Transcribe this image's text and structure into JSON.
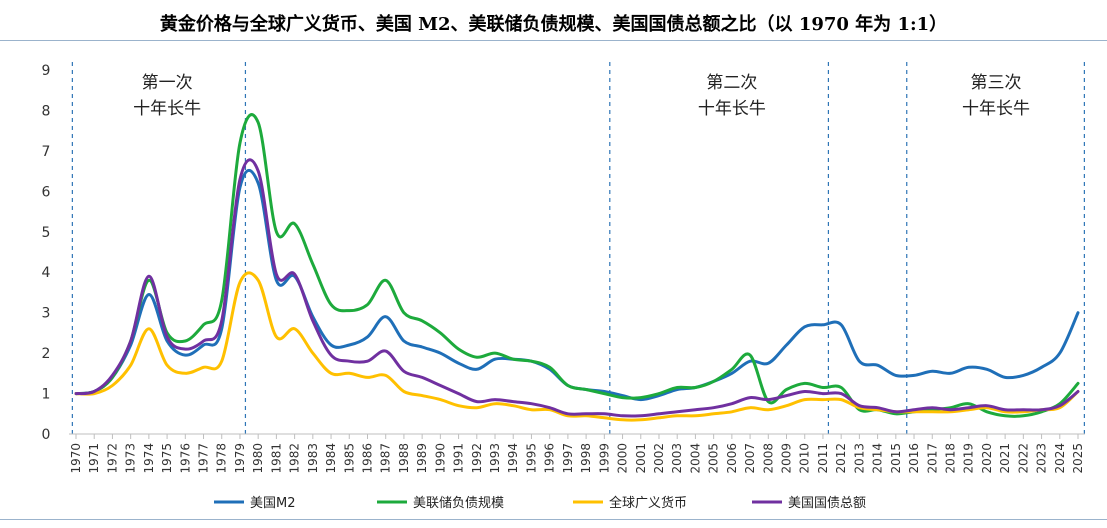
{
  "chart_data": {
    "type": "line",
    "title": "黄金价格与全球广义货币、美国 M2、美联储负债规模、美国国债总额之比（以 1970 年为 1:1）",
    "xlabel": "",
    "ylabel": "",
    "ylim": [
      0,
      9
    ],
    "yticks": [
      "0",
      "1",
      "2",
      "3",
      "4",
      "5",
      "6",
      "7",
      "8",
      "9"
    ],
    "grid": false,
    "legend_position": "bottom",
    "x": [
      1970,
      1971,
      1972,
      1973,
      1974,
      1975,
      1976,
      1977,
      1978,
      1979,
      1980,
      1981,
      1982,
      1983,
      1984,
      1985,
      1986,
      1987,
      1988,
      1989,
      1990,
      1991,
      1992,
      1993,
      1994,
      1995,
      1996,
      1997,
      1998,
      1999,
      2000,
      2001,
      2002,
      2003,
      2004,
      2005,
      2006,
      2007,
      2008,
      2009,
      2010,
      2011,
      2012,
      2013,
      2014,
      2015,
      2016,
      2017,
      2018,
      2019,
      2020,
      2021,
      2022,
      2023,
      2024,
      2025
    ],
    "series": [
      {
        "name": "美国M2",
        "color": "#1f6fb8",
        "values": [
          1.0,
          1.05,
          1.4,
          2.2,
          3.45,
          2.3,
          1.95,
          2.2,
          2.6,
          6.1,
          6.2,
          3.8,
          3.9,
          2.9,
          2.2,
          2.2,
          2.4,
          2.9,
          2.3,
          2.15,
          2.0,
          1.75,
          1.6,
          1.85,
          1.85,
          1.8,
          1.6,
          1.2,
          1.1,
          1.05,
          0.95,
          0.85,
          0.95,
          1.1,
          1.15,
          1.3,
          1.5,
          1.8,
          1.75,
          2.2,
          2.65,
          2.7,
          2.7,
          1.8,
          1.7,
          1.45,
          1.45,
          1.55,
          1.5,
          1.65,
          1.6,
          1.4,
          1.45,
          1.65,
          2.0,
          3.0
        ]
      },
      {
        "name": "美联储负债规模",
        "color": "#1daa3c",
        "values": [
          1.0,
          1.05,
          1.4,
          2.3,
          3.8,
          2.5,
          2.3,
          2.7,
          3.3,
          7.2,
          7.7,
          5.0,
          5.2,
          4.2,
          3.2,
          3.05,
          3.2,
          3.8,
          3.0,
          2.8,
          2.5,
          2.1,
          1.9,
          2.0,
          1.85,
          1.8,
          1.65,
          1.2,
          1.1,
          1.0,
          0.9,
          0.9,
          1.0,
          1.15,
          1.15,
          1.3,
          1.6,
          1.95,
          0.8,
          1.1,
          1.25,
          1.15,
          1.15,
          0.6,
          0.6,
          0.5,
          0.55,
          0.6,
          0.65,
          0.75,
          0.55,
          0.45,
          0.45,
          0.55,
          0.75,
          1.25
        ]
      },
      {
        "name": "全球广义货币",
        "color": "#ffc000",
        "values": [
          1.0,
          1.0,
          1.2,
          1.7,
          2.6,
          1.7,
          1.5,
          1.65,
          1.8,
          3.75,
          3.8,
          2.4,
          2.6,
          2.0,
          1.5,
          1.5,
          1.4,
          1.45,
          1.05,
          0.95,
          0.85,
          0.7,
          0.65,
          0.75,
          0.7,
          0.6,
          0.6,
          0.45,
          0.45,
          0.4,
          0.35,
          0.35,
          0.4,
          0.45,
          0.45,
          0.5,
          0.55,
          0.65,
          0.6,
          0.7,
          0.85,
          0.85,
          0.85,
          0.65,
          0.6,
          0.55,
          0.55,
          0.55,
          0.55,
          0.6,
          0.65,
          0.55,
          0.55,
          0.6,
          0.65,
          1.05
        ]
      },
      {
        "name": "美国国债总额",
        "color": "#7030a0",
        "values": [
          1.0,
          1.05,
          1.45,
          2.3,
          3.9,
          2.4,
          2.1,
          2.3,
          2.8,
          6.3,
          6.5,
          3.95,
          3.95,
          2.8,
          1.95,
          1.8,
          1.8,
          2.05,
          1.55,
          1.4,
          1.2,
          1.0,
          0.8,
          0.85,
          0.8,
          0.75,
          0.65,
          0.5,
          0.5,
          0.5,
          0.45,
          0.45,
          0.5,
          0.55,
          0.6,
          0.65,
          0.75,
          0.9,
          0.85,
          0.95,
          1.05,
          1.0,
          1.0,
          0.7,
          0.65,
          0.55,
          0.6,
          0.65,
          0.6,
          0.65,
          0.7,
          0.6,
          0.6,
          0.6,
          0.7,
          1.05
        ]
      }
    ],
    "annotations": [
      {
        "line1": "第一次",
        "line2": "十年长牛",
        "from": 1970,
        "to": 1980
      },
      {
        "line1": "第二次",
        "line2": "十年长牛",
        "from": 2001,
        "to": 2011
      },
      {
        "line1": "第三次",
        "line2": "十年长牛",
        "from": 2016,
        "to": 2025
      }
    ],
    "vlines": [
      1969.8,
      1979.3,
      1999.3,
      2011.3,
      2015.6,
      2025.35
    ]
  }
}
